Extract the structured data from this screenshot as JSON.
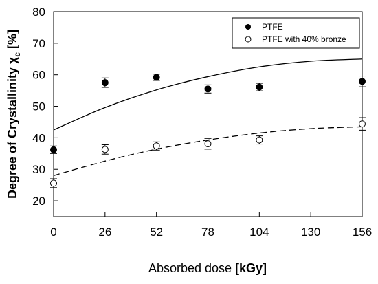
{
  "chart_data": {
    "type": "scatter",
    "xlabel_plain": "Absorbed dose ",
    "xlabel_unit": "[kGy]",
    "ylabel_main": "Degree of Crystallinity χ",
    "ylabel_sub": "c",
    "ylabel_unit": " [%]",
    "xlim": [
      0,
      156
    ],
    "ylim": [
      15,
      80
    ],
    "xticks": [
      0,
      26,
      52,
      78,
      104,
      130,
      156
    ],
    "yticks": [
      20,
      30,
      40,
      50,
      60,
      70,
      80
    ],
    "legend_position": "top-right",
    "series": [
      {
        "name": "PTFE",
        "marker": "filled-circle",
        "color": "#000000",
        "points": [
          {
            "x": 0,
            "y": 36.2,
            "err": 1.2
          },
          {
            "x": 26,
            "y": 57.5,
            "err": 1.5
          },
          {
            "x": 52,
            "y": 59.2,
            "err": 1.0
          },
          {
            "x": 78,
            "y": 55.5,
            "err": 1.3
          },
          {
            "x": 104,
            "y": 56.1,
            "err": 1.2
          },
          {
            "x": 156,
            "y": 57.9,
            "err": 1.7
          }
        ],
        "fit": {
          "style": "solid",
          "x": [
            0,
            26,
            52,
            78,
            104,
            130,
            156
          ],
          "y": [
            42.5,
            49.6,
            55.2,
            59.4,
            62.5,
            64.3,
            65.0
          ]
        }
      },
      {
        "name": "PTFE with 40% bronze",
        "marker": "open-circle",
        "color": "#000000",
        "points": [
          {
            "x": 0,
            "y": 25.6,
            "err": 1.4
          },
          {
            "x": 26,
            "y": 36.3,
            "err": 1.5
          },
          {
            "x": 52,
            "y": 37.4,
            "err": 1.3
          },
          {
            "x": 78,
            "y": 38.1,
            "err": 1.7
          },
          {
            "x": 104,
            "y": 39.3,
            "err": 1.3
          },
          {
            "x": 156,
            "y": 44.4,
            "err": 2.0
          }
        ],
        "fit": {
          "style": "dashed",
          "x": [
            0,
            26,
            52,
            78,
            104,
            130,
            156
          ],
          "y": [
            28.0,
            32.6,
            36.4,
            39.3,
            41.5,
            42.9,
            43.5
          ]
        }
      }
    ]
  }
}
